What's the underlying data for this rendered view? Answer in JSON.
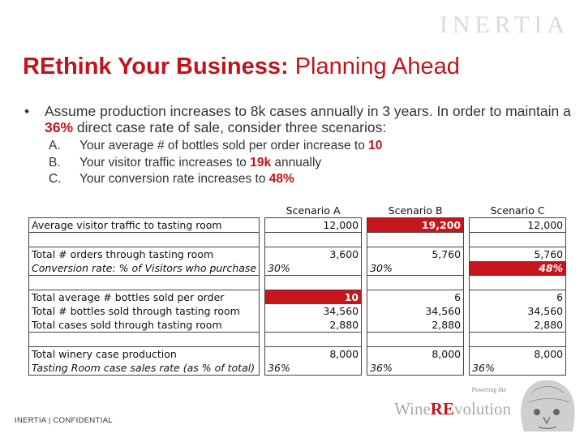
{
  "logo": "INERTIA",
  "title": {
    "bold": "REthink Your Business:",
    "rest": " Planning Ahead"
  },
  "bullet": {
    "marker": "•",
    "text_before": "Assume production increases to 8k cases annually in 3 years. In order to maintain a ",
    "highlight": "36%",
    "text_after": " direct case rate of sale, consider three scenarios:"
  },
  "scenarios": [
    {
      "letter": "A.",
      "text": "Your average # of bottles sold per order increase to ",
      "highlight": "10",
      "after": ""
    },
    {
      "letter": "B.",
      "text": "Your visitor traffic increases to ",
      "highlight": "19k",
      "after": " annually"
    },
    {
      "letter": "C.",
      "text": "Your conversion rate increases to ",
      "highlight": "48%",
      "after": ""
    }
  ],
  "table": {
    "headers": [
      "Scenario A",
      "Scenario B",
      "Scenario C"
    ],
    "rows": {
      "visitor_traffic": {
        "label": "Average visitor traffic to tasting room",
        "values": [
          "12,000",
          "19,200",
          "12,000"
        ]
      },
      "orders": {
        "label": "Total # orders through tasting room",
        "values": [
          "3,600",
          "5,760",
          "5,760"
        ]
      },
      "conversion": {
        "label": "Conversion rate: % of Visitors who purchase",
        "values": [
          "30%",
          "30%",
          "48%"
        ]
      },
      "avg_bottles": {
        "label": "Total average # bottles sold per order",
        "values": [
          "10",
          "6",
          "6"
        ]
      },
      "bottles_sold": {
        "label": "Total # bottles sold through tasting room",
        "values": [
          "34,560",
          "34,560",
          "34,560"
        ]
      },
      "cases_sold": {
        "label": "Total cases sold through tasting room",
        "values": [
          "2,880",
          "2,880",
          "2,880"
        ]
      },
      "winery_production": {
        "label": "Total winery case production",
        "values": [
          "8,000",
          "8,000",
          "8,000"
        ]
      },
      "sales_rate": {
        "label": "Tasting Room case sales rate (as % of total)",
        "values": [
          "36%",
          "36%",
          "36%"
        ]
      }
    }
  },
  "footer": "INERTIA | CONFIDENTIAL",
  "brand": {
    "powering": "Powering the",
    "wine": "Wine",
    "re": "RE",
    "volution": "volution"
  },
  "colors": {
    "accent": "#c0141b",
    "highlight_fill": "#c8141b"
  }
}
